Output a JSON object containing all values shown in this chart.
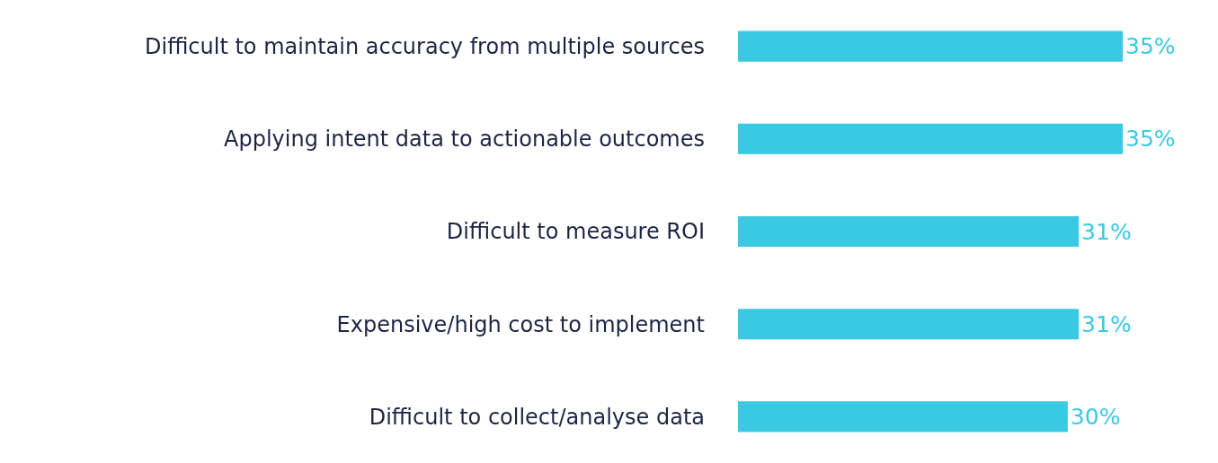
{
  "chart_data": {
    "type": "bar",
    "orientation": "horizontal",
    "categories": [
      "Difficult to maintain accuracy from multiple sources",
      "Applying intent data to actionable outcomes",
      "Difficult to measure ROI",
      "Expensive/high cost to implement",
      "Difficult to collect/analyse data"
    ],
    "values": [
      35,
      35,
      31,
      31,
      30
    ],
    "value_labels": [
      "35%",
      "35%",
      "31%",
      "31%",
      "30%"
    ],
    "color": "#3ac9e3",
    "grid": false,
    "legend": false,
    "tick_labels": "y"
  }
}
